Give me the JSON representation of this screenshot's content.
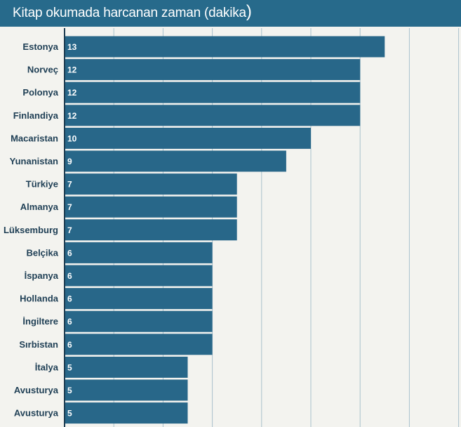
{
  "header": {
    "title": "Kitap okumada harcanan zaman (dakika",
    "title_paren": ")"
  },
  "colors": {
    "header_bg": "#276a8b",
    "bar": "#286789",
    "grid": "#a9c0cc",
    "axis": "#1e3d52",
    "background": "#f3f3ef"
  },
  "chart_data": {
    "type": "bar",
    "orientation": "horizontal",
    "title": "Kitap okumada harcanan zaman (dakika)",
    "xlabel": "",
    "ylabel": "",
    "categories": [
      "Estonya",
      "Norveç",
      "Polonya",
      "Finlandiya",
      "Macaristan",
      "Yunanistan",
      "Türkiye",
      "Almanya",
      "Lüksemburg",
      "Belçika",
      "İspanya",
      "Hollanda",
      "İngiltere",
      "Sırbistan",
      "İtalya",
      "Avusturya",
      "Avusturya"
    ],
    "values": [
      13,
      12,
      12,
      12,
      10,
      9,
      7,
      7,
      7,
      6,
      6,
      6,
      6,
      6,
      5,
      5,
      5
    ],
    "xlim": [
      0,
      16
    ],
    "grid_step": 2,
    "grid": true,
    "legend": "none",
    "data_labels": "inside-start"
  }
}
